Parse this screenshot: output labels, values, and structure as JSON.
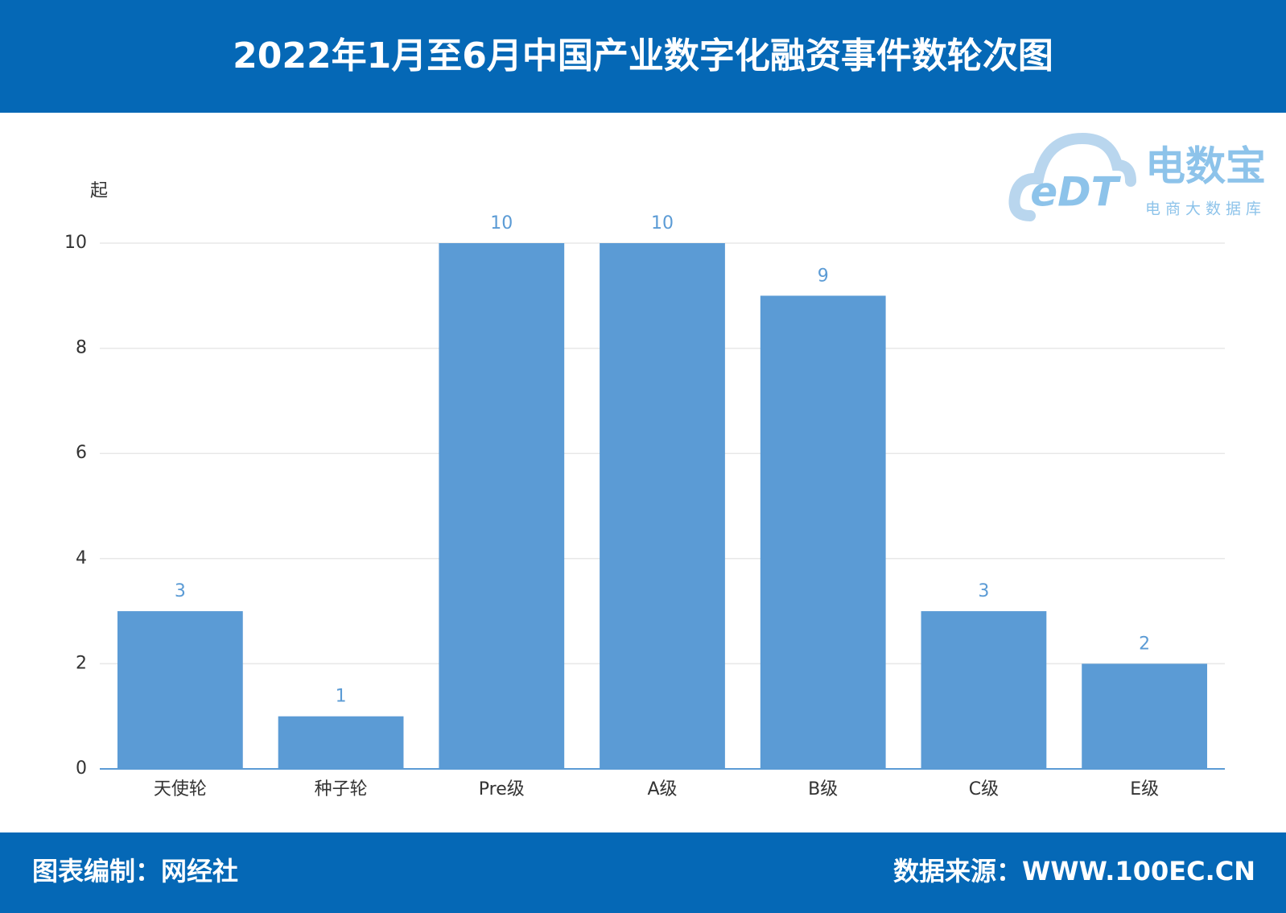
{
  "chart_data": {
    "type": "bar",
    "title": "2022年1月至6月中国产业数字化融资事件数轮次图",
    "y_unit": "起",
    "categories": [
      "天使轮",
      "种子轮",
      "Pre级",
      "A级",
      "B级",
      "C级",
      "E级"
    ],
    "values": [
      3,
      1,
      10,
      10,
      9,
      3,
      2
    ],
    "color": "#5b9bd5",
    "ylim": [
      0,
      10
    ],
    "yticks": [
      0,
      2,
      4,
      6,
      8,
      10
    ],
    "grid": true
  },
  "footer": {
    "left": "图表编制：网经社",
    "right": "数据来源：WWW.100EC.CN"
  },
  "logo": {
    "mark": "eDT",
    "name": "电数宝",
    "tagline": "电商大数据库"
  }
}
